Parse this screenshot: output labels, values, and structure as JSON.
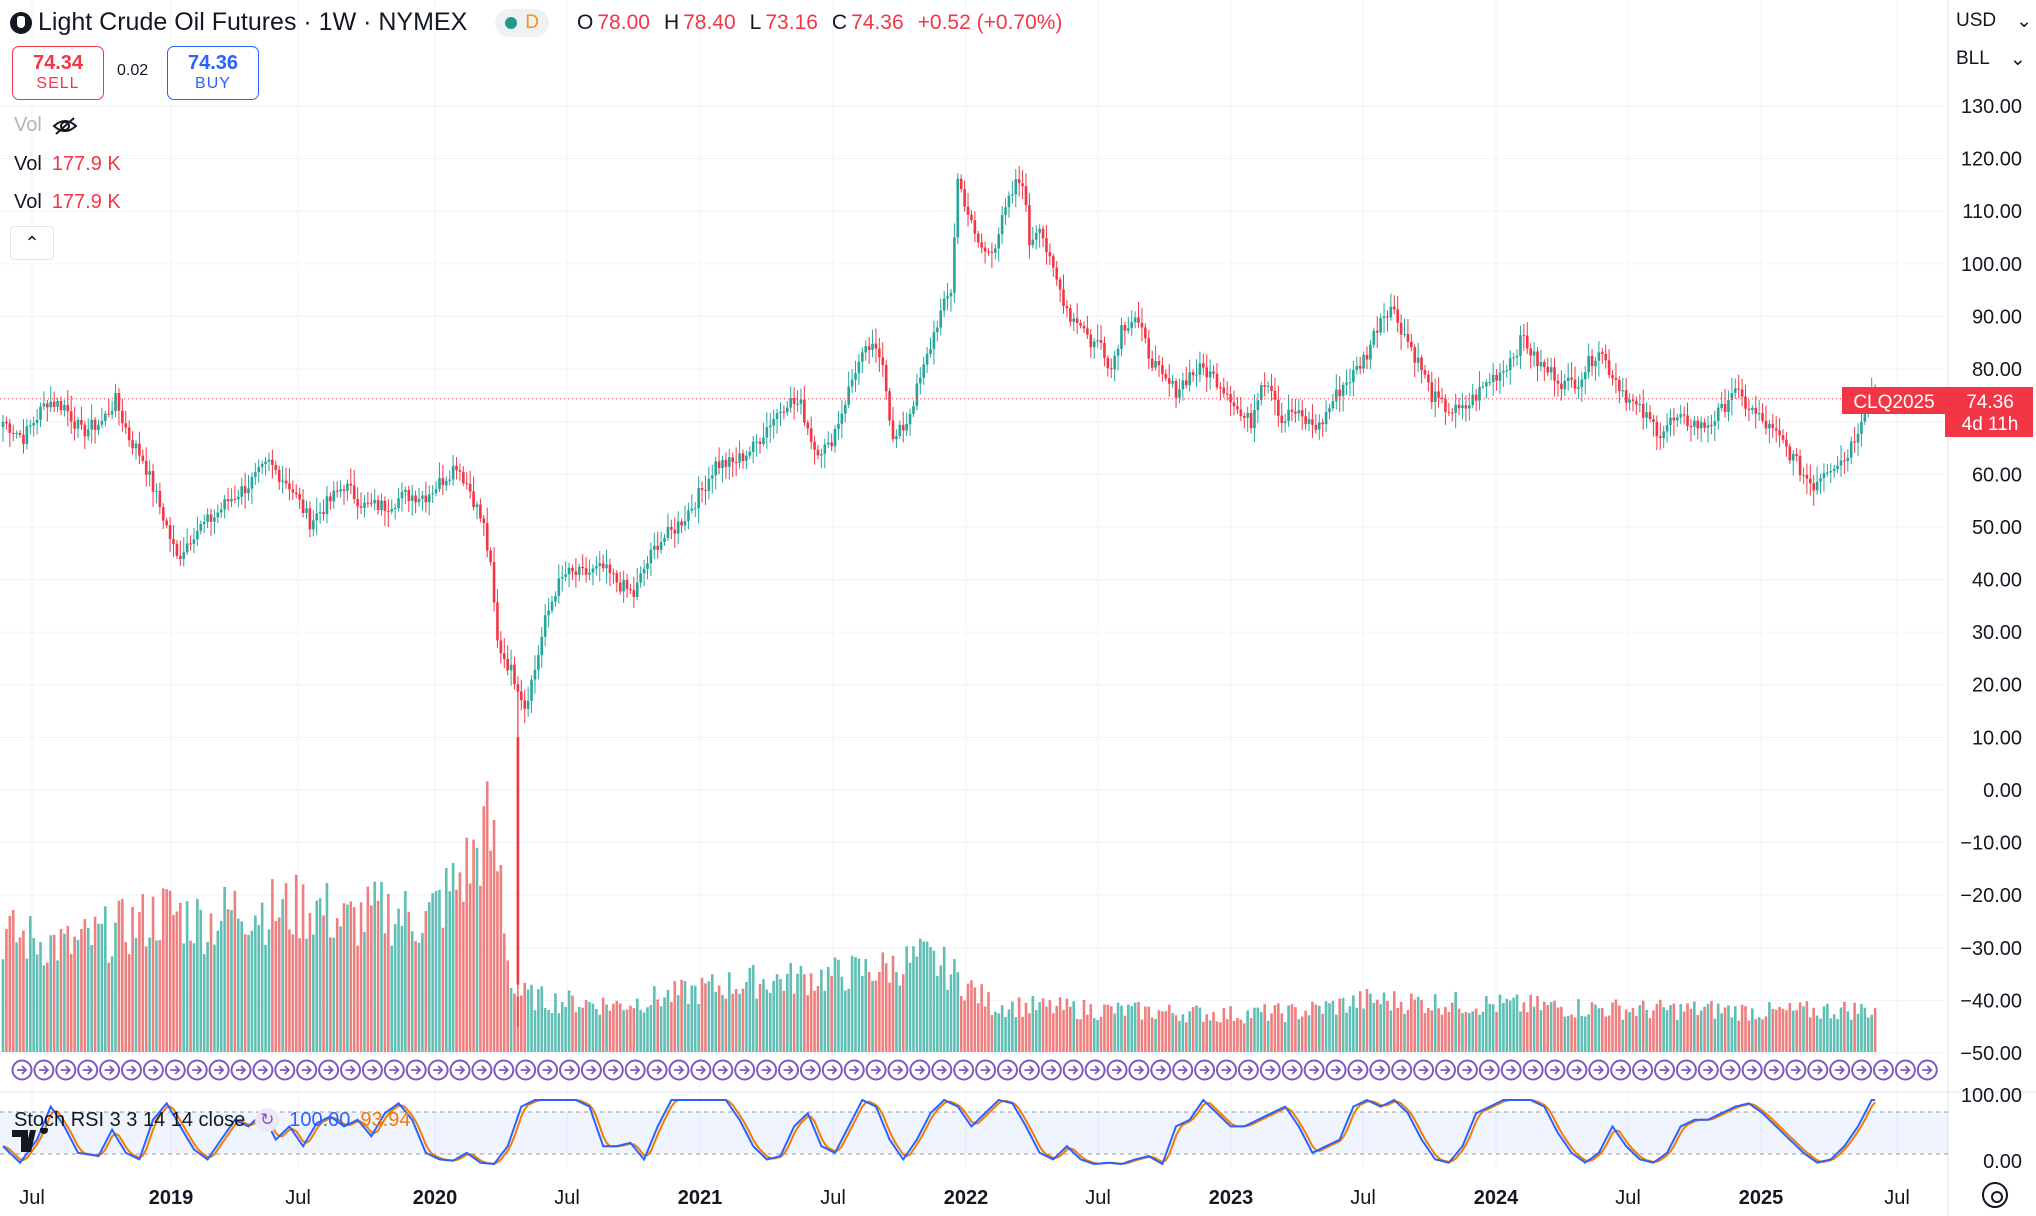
{
  "header": {
    "symbol_title": "Light Crude Oil Futures · 1W · NYMEX",
    "interval_badge": "D",
    "ohlc": [
      {
        "label": "O",
        "value": "78.00"
      },
      {
        "label": "H",
        "value": "78.40"
      },
      {
        "label": "L",
        "value": "73.16"
      },
      {
        "label": "C",
        "value": "74.36"
      }
    ],
    "change": "+0.52 (+0.70%)"
  },
  "trade": {
    "sell_price": "74.34",
    "sell_label": "SELL",
    "spread": "0.02",
    "buy_price": "74.36",
    "buy_label": "BUY"
  },
  "volume_legend": [
    {
      "label": "Vol",
      "value": "",
      "hidden": true
    },
    {
      "label": "Vol",
      "value": "177.9 K"
    },
    {
      "label": "Vol",
      "value": "177.9 K"
    }
  ],
  "right_panel": {
    "currency": "USD",
    "unit": "BLL"
  },
  "price_label": {
    "symbol": "CLQ2025",
    "price": "74.36",
    "countdown": "4d 11h"
  },
  "stoch_rsi": {
    "label": "Stoch RSI 3 3 14 14 close",
    "k_value": "100.00",
    "d_value": "93.94"
  },
  "colors": {
    "up": "#26a69a",
    "down": "#f23645",
    "volume_up": "#5fbfb4",
    "volume_down": "#ef7f7f",
    "stoch_k": "#2962ff",
    "stoch_d": "#f57c00",
    "events": "#7e57c2"
  },
  "chart_data": {
    "type": "candlestick",
    "title": "Light Crude Oil Futures · 1W · NYMEX",
    "y_axis_ticks": [
      "130.00",
      "120.00",
      "110.00",
      "100.00",
      "90.00",
      "80.00",
      "70.00",
      "60.00",
      "50.00",
      "40.00",
      "30.00",
      "20.00",
      "10.00",
      "0.00",
      "−10.00",
      "−20.00",
      "−30.00",
      "−40.00",
      "−50.00"
    ],
    "ylim": [
      -50,
      130
    ],
    "x_axis_labels": [
      "Jul",
      "2019",
      "Jul",
      "2020",
      "Jul",
      "2021",
      "Jul",
      "2022",
      "Jul",
      "2023",
      "Jul",
      "2024",
      "Jul",
      "2025",
      "Jul"
    ],
    "x_axis_bold": [
      "2019",
      "2020",
      "2021",
      "2022",
      "2023",
      "2024",
      "2025"
    ],
    "stoch_axis_ticks": [
      "100.00",
      "0.00"
    ],
    "last_price": 74.36,
    "price_path": [
      [
        0,
        70
      ],
      [
        6,
        67
      ],
      [
        13,
        74
      ],
      [
        18,
        73
      ],
      [
        23,
        68
      ],
      [
        29,
        70
      ],
      [
        33,
        74
      ],
      [
        37,
        67
      ],
      [
        41,
        63
      ],
      [
        47,
        52
      ],
      [
        51,
        44
      ],
      [
        56,
        49
      ],
      [
        62,
        52
      ],
      [
        66,
        55
      ],
      [
        72,
        58
      ],
      [
        78,
        62
      ],
      [
        84,
        58
      ],
      [
        90,
        51
      ],
      [
        96,
        55
      ],
      [
        100,
        58
      ],
      [
        106,
        54
      ],
      [
        112,
        54
      ],
      [
        118,
        56
      ],
      [
        124,
        56
      ],
      [
        129,
        59
      ],
      [
        133,
        62
      ],
      [
        137,
        57
      ],
      [
        141,
        50
      ],
      [
        143,
        42
      ],
      [
        145,
        28
      ],
      [
        148,
        24
      ],
      [
        151,
        20
      ],
      [
        153,
        16
      ],
      [
        156,
        23
      ],
      [
        159,
        32
      ],
      [
        162,
        38
      ],
      [
        165,
        41
      ],
      [
        170,
        41
      ],
      [
        176,
        42
      ],
      [
        181,
        39
      ],
      [
        185,
        37
      ],
      [
        188,
        42
      ],
      [
        192,
        47
      ],
      [
        196,
        49
      ],
      [
        200,
        52
      ],
      [
        205,
        57
      ],
      [
        209,
        62
      ],
      [
        214,
        62
      ],
      [
        220,
        65
      ],
      [
        225,
        70
      ],
      [
        230,
        74
      ],
      [
        234,
        73
      ],
      [
        238,
        65
      ],
      [
        242,
        65
      ],
      [
        246,
        72
      ],
      [
        250,
        80
      ],
      [
        254,
        84
      ],
      [
        258,
        82
      ],
      [
        261,
        66
      ],
      [
        265,
        70
      ],
      [
        270,
        80
      ],
      [
        274,
        89
      ],
      [
        278,
        95
      ],
      [
        280,
        116
      ],
      [
        282,
        112
      ],
      [
        285,
        105
      ],
      [
        288,
        102
      ],
      [
        291,
        104
      ],
      [
        294,
        110
      ],
      [
        297,
        115
      ],
      [
        299,
        116
      ],
      [
        301,
        104
      ],
      [
        304,
        108
      ],
      [
        307,
        100
      ],
      [
        310,
        95
      ],
      [
        313,
        90
      ],
      [
        316,
        89
      ],
      [
        319,
        85
      ],
      [
        322,
        85
      ],
      [
        325,
        80
      ],
      [
        328,
        88
      ],
      [
        332,
        90
      ],
      [
        336,
        83
      ],
      [
        340,
        78
      ],
      [
        344,
        76
      ],
      [
        348,
        79
      ],
      [
        352,
        80
      ],
      [
        356,
        78
      ],
      [
        360,
        75
      ],
      [
        363,
        71
      ],
      [
        366,
        70
      ],
      [
        369,
        78
      ],
      [
        372,
        77
      ],
      [
        375,
        70
      ],
      [
        378,
        72
      ],
      [
        382,
        70
      ],
      [
        386,
        69
      ],
      [
        390,
        74
      ],
      [
        393,
        77
      ],
      [
        396,
        79
      ],
      [
        400,
        83
      ],
      [
        404,
        90
      ],
      [
        407,
        92
      ],
      [
        410,
        88
      ],
      [
        413,
        84
      ],
      [
        416,
        80
      ],
      [
        419,
        75
      ],
      [
        422,
        73
      ],
      [
        425,
        72
      ],
      [
        428,
        72
      ],
      [
        432,
        75
      ],
      [
        436,
        78
      ],
      [
        440,
        80
      ],
      [
        443,
        83
      ],
      [
        446,
        86
      ],
      [
        449,
        82
      ],
      [
        452,
        80
      ],
      [
        455,
        79
      ],
      [
        458,
        77
      ],
      [
        462,
        78
      ],
      [
        465,
        81
      ],
      [
        468,
        84
      ],
      [
        471,
        80
      ],
      [
        474,
        77
      ],
      [
        477,
        74
      ],
      [
        480,
        72
      ],
      [
        483,
        70
      ],
      [
        486,
        68
      ],
      [
        489,
        70
      ],
      [
        492,
        70
      ],
      [
        495,
        70
      ],
      [
        498,
        69
      ],
      [
        501,
        70
      ],
      [
        504,
        72
      ],
      [
        507,
        76
      ],
      [
        510,
        74
      ],
      [
        513,
        72
      ],
      [
        516,
        70
      ],
      [
        519,
        68
      ],
      [
        522,
        66
      ],
      [
        525,
        63
      ],
      [
        528,
        60
      ],
      [
        531,
        58
      ],
      [
        534,
        61
      ],
      [
        537,
        62
      ],
      [
        540,
        63
      ],
      [
        543,
        67
      ],
      [
        546,
        73
      ],
      [
        548,
        76
      ],
      [
        549,
        74.36
      ]
    ],
    "stoch_k_path": [
      [
        0,
        30
      ],
      [
        5,
        5
      ],
      [
        10,
        40
      ],
      [
        14,
        90
      ],
      [
        18,
        60
      ],
      [
        22,
        20
      ],
      [
        28,
        15
      ],
      [
        32,
        55
      ],
      [
        36,
        20
      ],
      [
        40,
        10
      ],
      [
        44,
        70
      ],
      [
        48,
        95
      ],
      [
        52,
        60
      ],
      [
        56,
        25
      ],
      [
        60,
        10
      ],
      [
        64,
        40
      ],
      [
        68,
        70
      ],
      [
        72,
        60
      ],
      [
        76,
        80
      ],
      [
        80,
        40
      ],
      [
        84,
        60
      ],
      [
        88,
        30
      ],
      [
        92,
        65
      ],
      [
        96,
        75
      ],
      [
        100,
        60
      ],
      [
        104,
        70
      ],
      [
        108,
        45
      ],
      [
        112,
        80
      ],
      [
        116,
        95
      ],
      [
        120,
        70
      ],
      [
        124,
        20
      ],
      [
        128,
        10
      ],
      [
        132,
        8
      ],
      [
        136,
        20
      ],
      [
        140,
        5
      ],
      [
        144,
        3
      ],
      [
        148,
        30
      ],
      [
        152,
        90
      ],
      [
        156,
        100
      ],
      [
        160,
        100
      ],
      [
        164,
        100
      ],
      [
        168,
        100
      ],
      [
        172,
        90
      ],
      [
        176,
        30
      ],
      [
        180,
        30
      ],
      [
        184,
        35
      ],
      [
        188,
        10
      ],
      [
        192,
        60
      ],
      [
        196,
        100
      ],
      [
        200,
        100
      ],
      [
        204,
        100
      ],
      [
        208,
        100
      ],
      [
        212,
        100
      ],
      [
        216,
        70
      ],
      [
        220,
        30
      ],
      [
        224,
        10
      ],
      [
        228,
        15
      ],
      [
        232,
        60
      ],
      [
        236,
        80
      ],
      [
        240,
        30
      ],
      [
        244,
        20
      ],
      [
        248,
        60
      ],
      [
        252,
        100
      ],
      [
        256,
        90
      ],
      [
        260,
        40
      ],
      [
        264,
        10
      ],
      [
        268,
        40
      ],
      [
        272,
        80
      ],
      [
        276,
        100
      ],
      [
        280,
        90
      ],
      [
        284,
        60
      ],
      [
        288,
        80
      ],
      [
        292,
        100
      ],
      [
        296,
        95
      ],
      [
        300,
        60
      ],
      [
        304,
        20
      ],
      [
        308,
        10
      ],
      [
        312,
        30
      ],
      [
        316,
        10
      ],
      [
        320,
        3
      ],
      [
        324,
        5
      ],
      [
        328,
        3
      ],
      [
        332,
        10
      ],
      [
        336,
        15
      ],
      [
        340,
        3
      ],
      [
        344,
        60
      ],
      [
        348,
        70
      ],
      [
        352,
        100
      ],
      [
        356,
        80
      ],
      [
        360,
        60
      ],
      [
        364,
        60
      ],
      [
        368,
        70
      ],
      [
        372,
        80
      ],
      [
        376,
        90
      ],
      [
        380,
        60
      ],
      [
        384,
        20
      ],
      [
        388,
        30
      ],
      [
        392,
        40
      ],
      [
        396,
        90
      ],
      [
        400,
        100
      ],
      [
        404,
        90
      ],
      [
        408,
        100
      ],
      [
        412,
        80
      ],
      [
        416,
        40
      ],
      [
        420,
        10
      ],
      [
        424,
        5
      ],
      [
        428,
        30
      ],
      [
        432,
        80
      ],
      [
        436,
        90
      ],
      [
        440,
        100
      ],
      [
        444,
        100
      ],
      [
        448,
        100
      ],
      [
        452,
        90
      ],
      [
        456,
        50
      ],
      [
        460,
        20
      ],
      [
        464,
        5
      ],
      [
        468,
        20
      ],
      [
        472,
        60
      ],
      [
        476,
        30
      ],
      [
        480,
        10
      ],
      [
        484,
        5
      ],
      [
        488,
        20
      ],
      [
        492,
        60
      ],
      [
        496,
        70
      ],
      [
        500,
        70
      ],
      [
        504,
        80
      ],
      [
        508,
        90
      ],
      [
        512,
        95
      ],
      [
        516,
        80
      ],
      [
        520,
        60
      ],
      [
        524,
        40
      ],
      [
        528,
        20
      ],
      [
        532,
        5
      ],
      [
        536,
        10
      ],
      [
        540,
        30
      ],
      [
        544,
        60
      ],
      [
        548,
        100
      ],
      [
        549,
        100
      ]
    ],
    "volume_profile": [
      [
        0,
        0.5
      ],
      [
        20,
        0.45
      ],
      [
        40,
        0.55
      ],
      [
        48,
        0.6
      ],
      [
        60,
        0.55
      ],
      [
        70,
        0.62
      ],
      [
        80,
        0.6
      ],
      [
        92,
        0.62
      ],
      [
        100,
        0.55
      ],
      [
        112,
        0.6
      ],
      [
        124,
        0.56
      ],
      [
        132,
        0.7
      ],
      [
        138,
        0.82
      ],
      [
        142,
        0.95
      ],
      [
        146,
        0.75
      ],
      [
        148,
        0.4
      ],
      [
        150,
        0.25
      ],
      [
        160,
        0.22
      ],
      [
        180,
        0.2
      ],
      [
        200,
        0.25
      ],
      [
        210,
        0.28
      ],
      [
        220,
        0.3
      ],
      [
        240,
        0.32
      ],
      [
        260,
        0.36
      ],
      [
        270,
        0.4
      ],
      [
        276,
        0.36
      ],
      [
        290,
        0.2
      ],
      [
        320,
        0.18
      ],
      [
        360,
        0.16
      ],
      [
        380,
        0.17
      ],
      [
        400,
        0.22
      ],
      [
        420,
        0.21
      ],
      [
        440,
        0.2
      ],
      [
        460,
        0.19
      ],
      [
        480,
        0.18
      ],
      [
        500,
        0.18
      ],
      [
        520,
        0.17
      ],
      [
        540,
        0.18
      ],
      [
        549,
        0.18
      ]
    ]
  }
}
